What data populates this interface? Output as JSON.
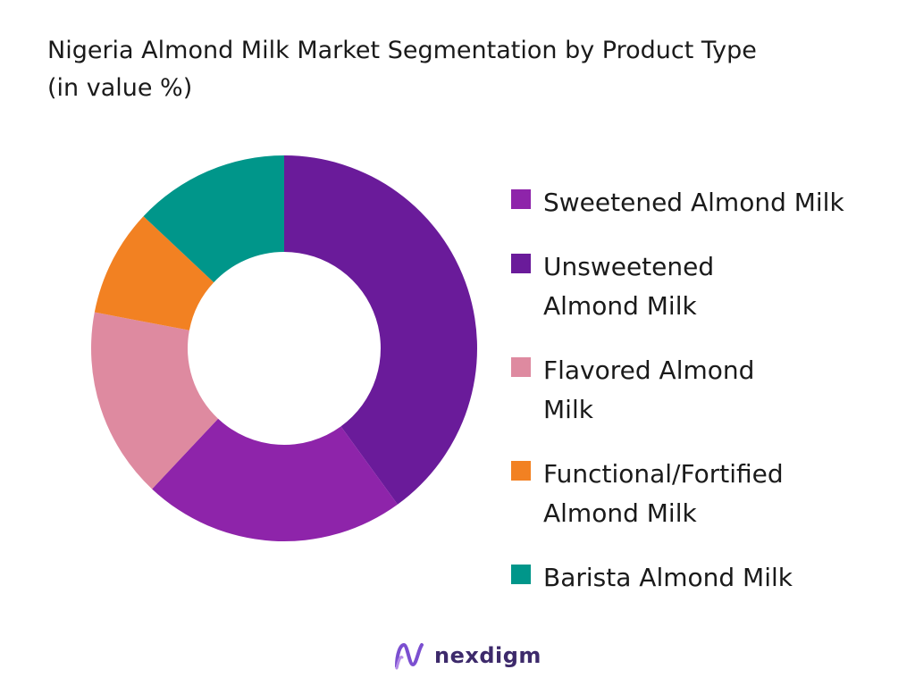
{
  "chart_data": {
    "type": "pie",
    "variant": "donut",
    "title_lines": [
      "Nigeria Almond Milk Market Segmentation by Product Type",
      "(in value %)"
    ],
    "legend_position": "right",
    "categories": [
      "Sweetened Almond Milk",
      "Unsweetened Almond Milk",
      "Flavored Almond Milk",
      "Functional/Fortified Almond Milk",
      "Barista Almond Milk"
    ],
    "legend_lines": [
      [
        "Sweetened Almond Milk"
      ],
      [
        "Unsweetened",
        "Almond Milk"
      ],
      [
        "Flavored Almond",
        "Milk"
      ],
      [
        "Functional/Fortified",
        "Almond Milk"
      ],
      [
        "Barista Almond Milk"
      ]
    ],
    "values": [
      22,
      40,
      16,
      9,
      13
    ],
    "colors": [
      "#8e24aa",
      "#6a1b9a",
      "#de8aa0",
      "#f28122",
      "#00968a"
    ],
    "slice_order": [
      1,
      0,
      2,
      3,
      4
    ]
  },
  "logo": {
    "text": "nexdigm",
    "colors": {
      "mark": "#7b4fd0",
      "text": "#3d2a6b"
    }
  }
}
